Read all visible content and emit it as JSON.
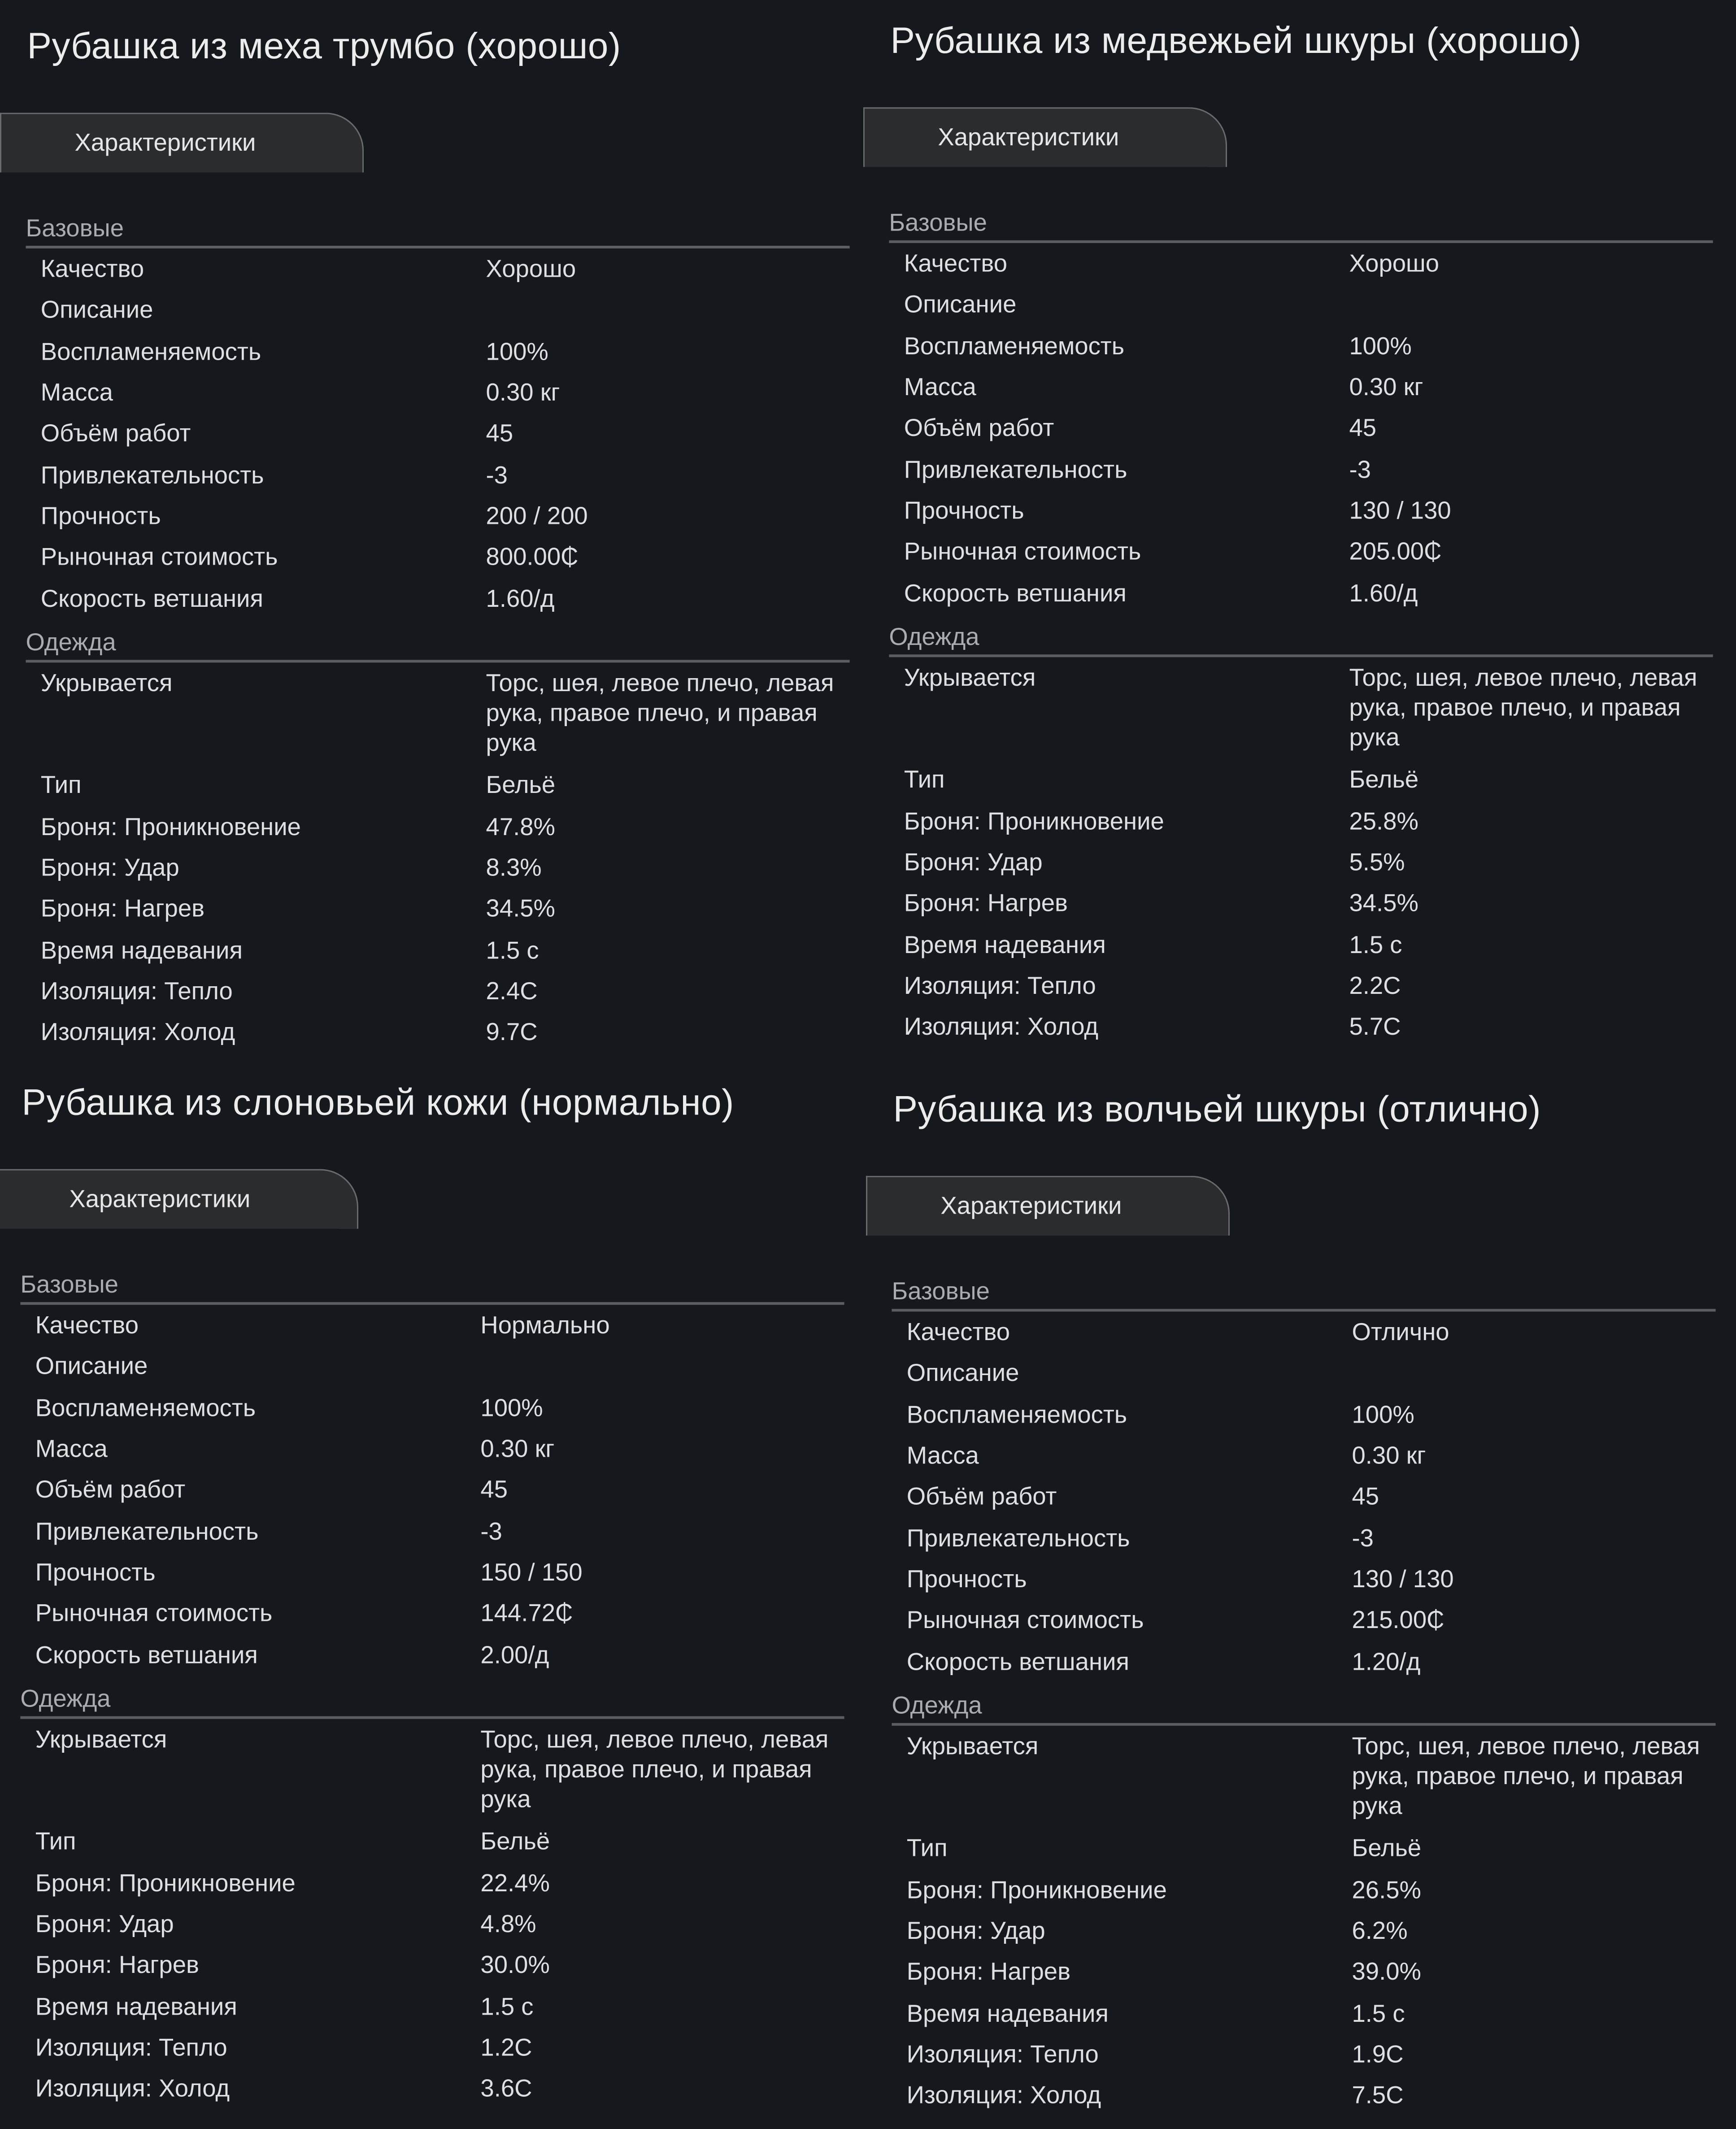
{
  "panels": [
    {
      "title": "Рубашка из меха трумбо (хорошо)",
      "tab": "Характеристики",
      "sections": [
        {
          "heading": "Базовые",
          "rows": [
            {
              "label": "Качество",
              "value": "Хорошо"
            },
            {
              "label": "Описание",
              "value": ""
            },
            {
              "label": "Воспламеняемость",
              "value": "100%"
            },
            {
              "label": "Масса",
              "value": "0.30 кг"
            },
            {
              "label": "Объём работ",
              "value": "45"
            },
            {
              "label": "Привлекательность",
              "value": "-3"
            },
            {
              "label": "Прочность",
              "value": "200 / 200"
            },
            {
              "label": "Рыночная стоимость",
              "value": "800.00₵"
            },
            {
              "label": "Скорость ветшания",
              "value": "1.60/д"
            }
          ]
        },
        {
          "heading": "Одежда",
          "rows": [
            {
              "label": "Укрывается",
              "value": "Торс, шея, левое плечо, левая рука, правое плечо, и правая рука"
            },
            {
              "label": "Тип",
              "value": "Бельё"
            },
            {
              "label": "Броня: Проникновение",
              "value": "47.8%"
            },
            {
              "label": "Броня: Удар",
              "value": "8.3%"
            },
            {
              "label": "Броня: Нагрев",
              "value": "34.5%"
            },
            {
              "label": "Время надевания",
              "value": "1.5 с"
            },
            {
              "label": "Изоляция: Тепло",
              "value": "2.4C"
            },
            {
              "label": "Изоляция: Холод",
              "value": "9.7C"
            }
          ]
        }
      ]
    },
    {
      "title": "Рубашка из медвежьей шкуры (хорошо)",
      "tab": "Характеристики",
      "sections": [
        {
          "heading": "Базовые",
          "rows": [
            {
              "label": "Качество",
              "value": "Хорошо"
            },
            {
              "label": "Описание",
              "value": ""
            },
            {
              "label": "Воспламеняемость",
              "value": "100%"
            },
            {
              "label": "Масса",
              "value": "0.30 кг"
            },
            {
              "label": "Объём работ",
              "value": "45"
            },
            {
              "label": "Привлекательность",
              "value": "-3"
            },
            {
              "label": "Прочность",
              "value": "130 / 130"
            },
            {
              "label": "Рыночная стоимость",
              "value": "205.00₵"
            },
            {
              "label": "Скорость ветшания",
              "value": "1.60/д"
            }
          ]
        },
        {
          "heading": "Одежда",
          "rows": [
            {
              "label": "Укрывается",
              "value": "Торс, шея, левое плечо, левая рука, правое плечо, и правая рука"
            },
            {
              "label": "Тип",
              "value": "Бельё"
            },
            {
              "label": "Броня: Проникновение",
              "value": "25.8%"
            },
            {
              "label": "Броня: Удар",
              "value": "5.5%"
            },
            {
              "label": "Броня: Нагрев",
              "value": "34.5%"
            },
            {
              "label": "Время надевания",
              "value": "1.5 с"
            },
            {
              "label": "Изоляция: Тепло",
              "value": "2.2C"
            },
            {
              "label": "Изоляция: Холод",
              "value": "5.7C"
            }
          ]
        }
      ]
    },
    {
      "title": "Рубашка из слоновьей кожи (нормально)",
      "tab": "Характеристики",
      "sections": [
        {
          "heading": "Базовые",
          "rows": [
            {
              "label": "Качество",
              "value": "Нормально"
            },
            {
              "label": "Описание",
              "value": ""
            },
            {
              "label": "Воспламеняемость",
              "value": "100%"
            },
            {
              "label": "Масса",
              "value": "0.30 кг"
            },
            {
              "label": "Объём работ",
              "value": "45"
            },
            {
              "label": "Привлекательность",
              "value": "-3"
            },
            {
              "label": "Прочность",
              "value": "150 / 150"
            },
            {
              "label": "Рыночная стоимость",
              "value": "144.72₵"
            },
            {
              "label": "Скорость ветшания",
              "value": "2.00/д"
            }
          ]
        },
        {
          "heading": "Одежда",
          "rows": [
            {
              "label": "Укрывается",
              "value": "Торс, шея, левое плечо, левая рука, правое плечо, и правая рука"
            },
            {
              "label": "Тип",
              "value": "Бельё"
            },
            {
              "label": "Броня: Проникновение",
              "value": "22.4%"
            },
            {
              "label": "Броня: Удар",
              "value": "4.8%"
            },
            {
              "label": "Броня: Нагрев",
              "value": "30.0%"
            },
            {
              "label": "Время надевания",
              "value": "1.5 с"
            },
            {
              "label": "Изоляция: Тепло",
              "value": "1.2C"
            },
            {
              "label": "Изоляция: Холод",
              "value": "3.6C"
            }
          ]
        }
      ]
    },
    {
      "title": "Рубашка из волчьей шкуры (отлично)",
      "tab": "Характеристики",
      "sections": [
        {
          "heading": "Базовые",
          "rows": [
            {
              "label": "Качество",
              "value": "Отлично"
            },
            {
              "label": "Описание",
              "value": ""
            },
            {
              "label": "Воспламеняемость",
              "value": "100%"
            },
            {
              "label": "Масса",
              "value": "0.30 кг"
            },
            {
              "label": "Объём работ",
              "value": "45"
            },
            {
              "label": "Привлекательность",
              "value": "-3"
            },
            {
              "label": "Прочность",
              "value": "130 / 130"
            },
            {
              "label": "Рыночная стоимость",
              "value": "215.00₵"
            },
            {
              "label": "Скорость ветшания",
              "value": "1.20/д"
            }
          ]
        },
        {
          "heading": "Одежда",
          "rows": [
            {
              "label": "Укрывается",
              "value": "Торс, шея, левое плечо, левая рука, правое плечо, и правая рука"
            },
            {
              "label": "Тип",
              "value": "Бельё"
            },
            {
              "label": "Броня: Проникновение",
              "value": "26.5%"
            },
            {
              "label": "Броня: Удар",
              "value": "6.2%"
            },
            {
              "label": "Броня: Нагрев",
              "value": "39.0%"
            },
            {
              "label": "Время надевания",
              "value": "1.5 с"
            },
            {
              "label": "Изоляция: Тепло",
              "value": "1.9C"
            },
            {
              "label": "Изоляция: Холод",
              "value": "7.5C"
            }
          ]
        }
      ]
    }
  ]
}
